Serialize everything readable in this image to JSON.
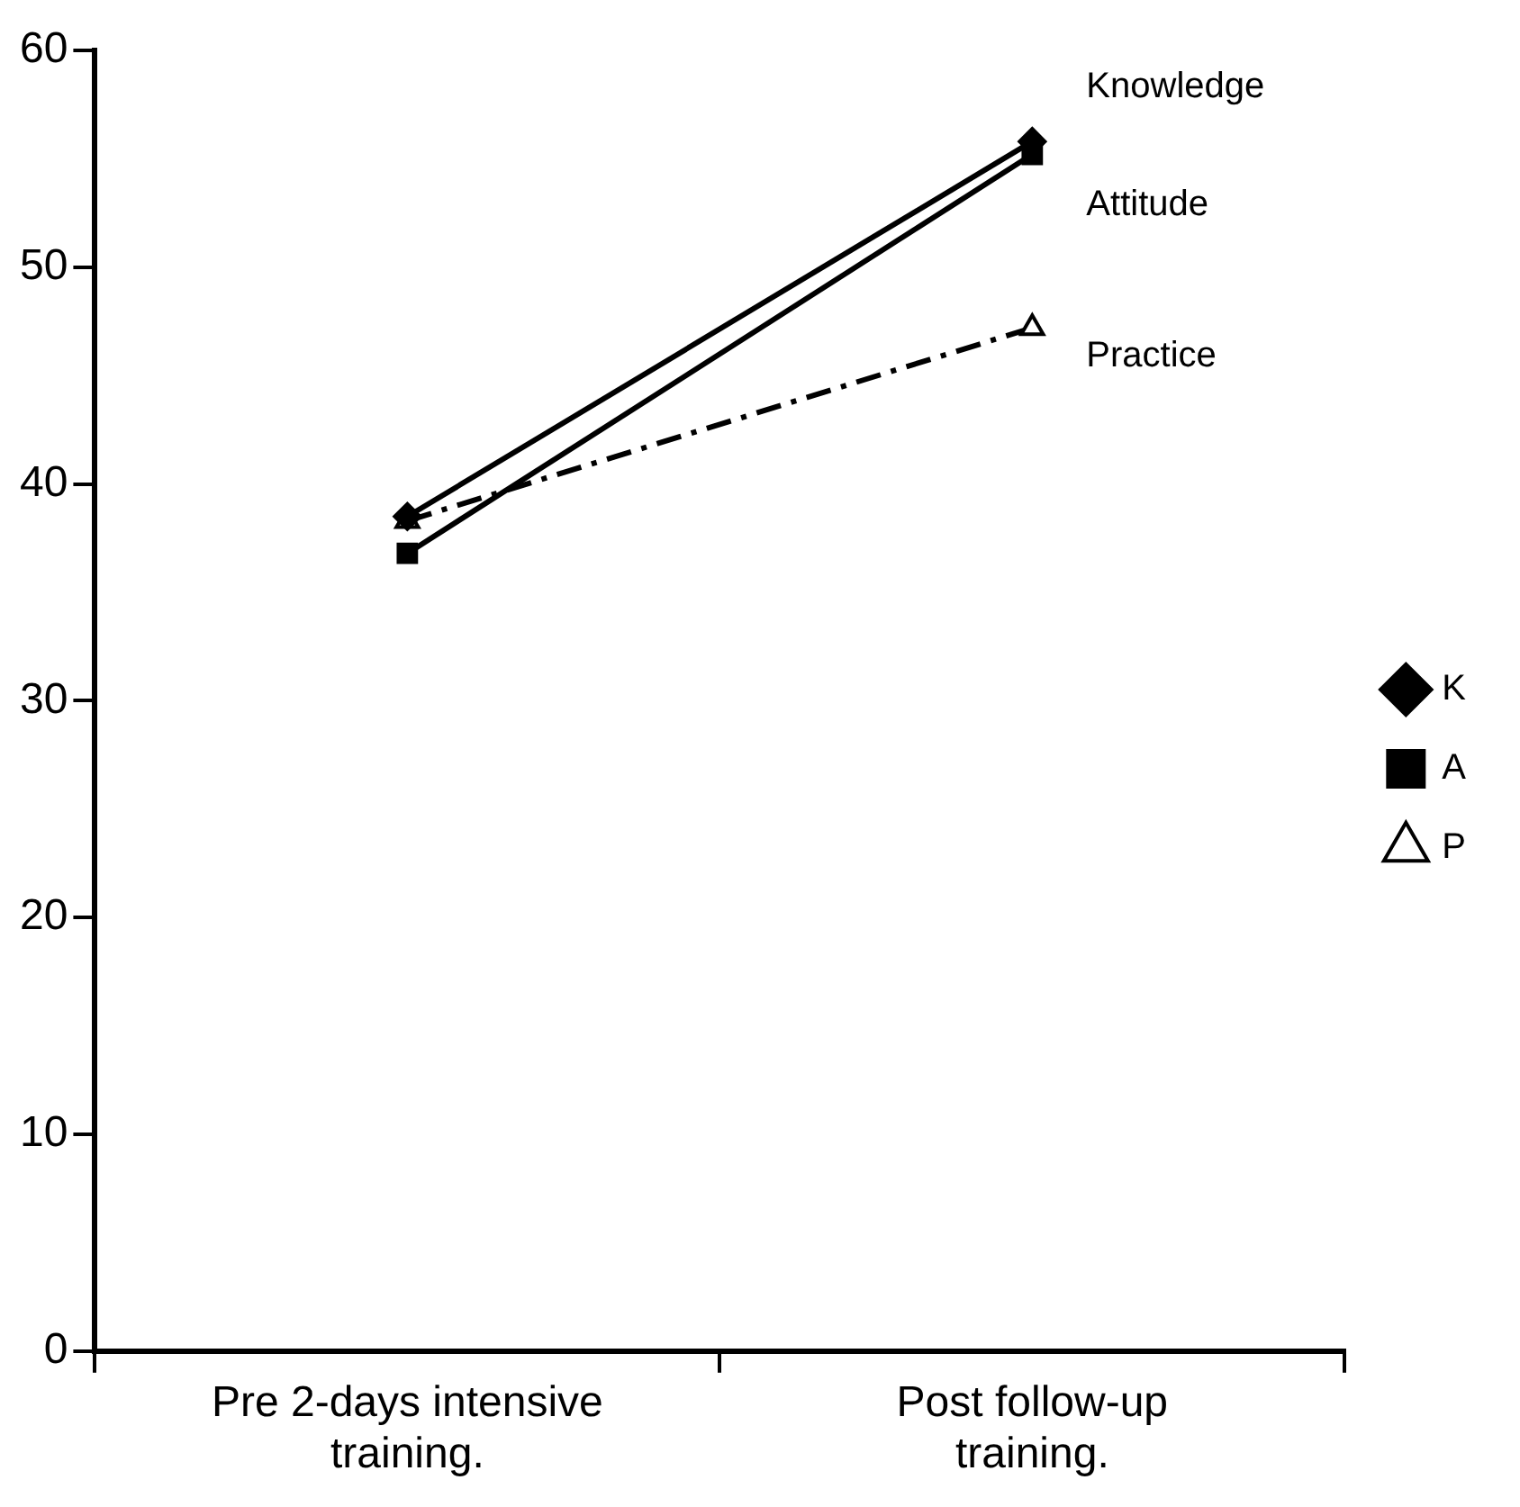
{
  "chart_data": {
    "type": "line",
    "categories": [
      "Pre 2-days intensive training.",
      "Post follow-up training."
    ],
    "series": [
      {
        "name": "K",
        "color": "#000000",
        "values": [
          38.5,
          55.8
        ],
        "marker": "diamond",
        "line_style": "solid"
      },
      {
        "name": "A",
        "color": "#000000",
        "values": [
          36.8,
          55.2
        ],
        "marker": "square",
        "line_style": "solid"
      },
      {
        "name": "P",
        "color": "#000000",
        "values": [
          38.3,
          47.2
        ],
        "marker": "triangle",
        "line_style": "dashed"
      }
    ],
    "annotations": [
      "Knowledge",
      "Attitude",
      "Practice"
    ],
    "ylim": [
      0,
      60
    ],
    "yticks": [
      0,
      10,
      20,
      30,
      40,
      50,
      60
    ],
    "grid": false,
    "legend": "right"
  }
}
